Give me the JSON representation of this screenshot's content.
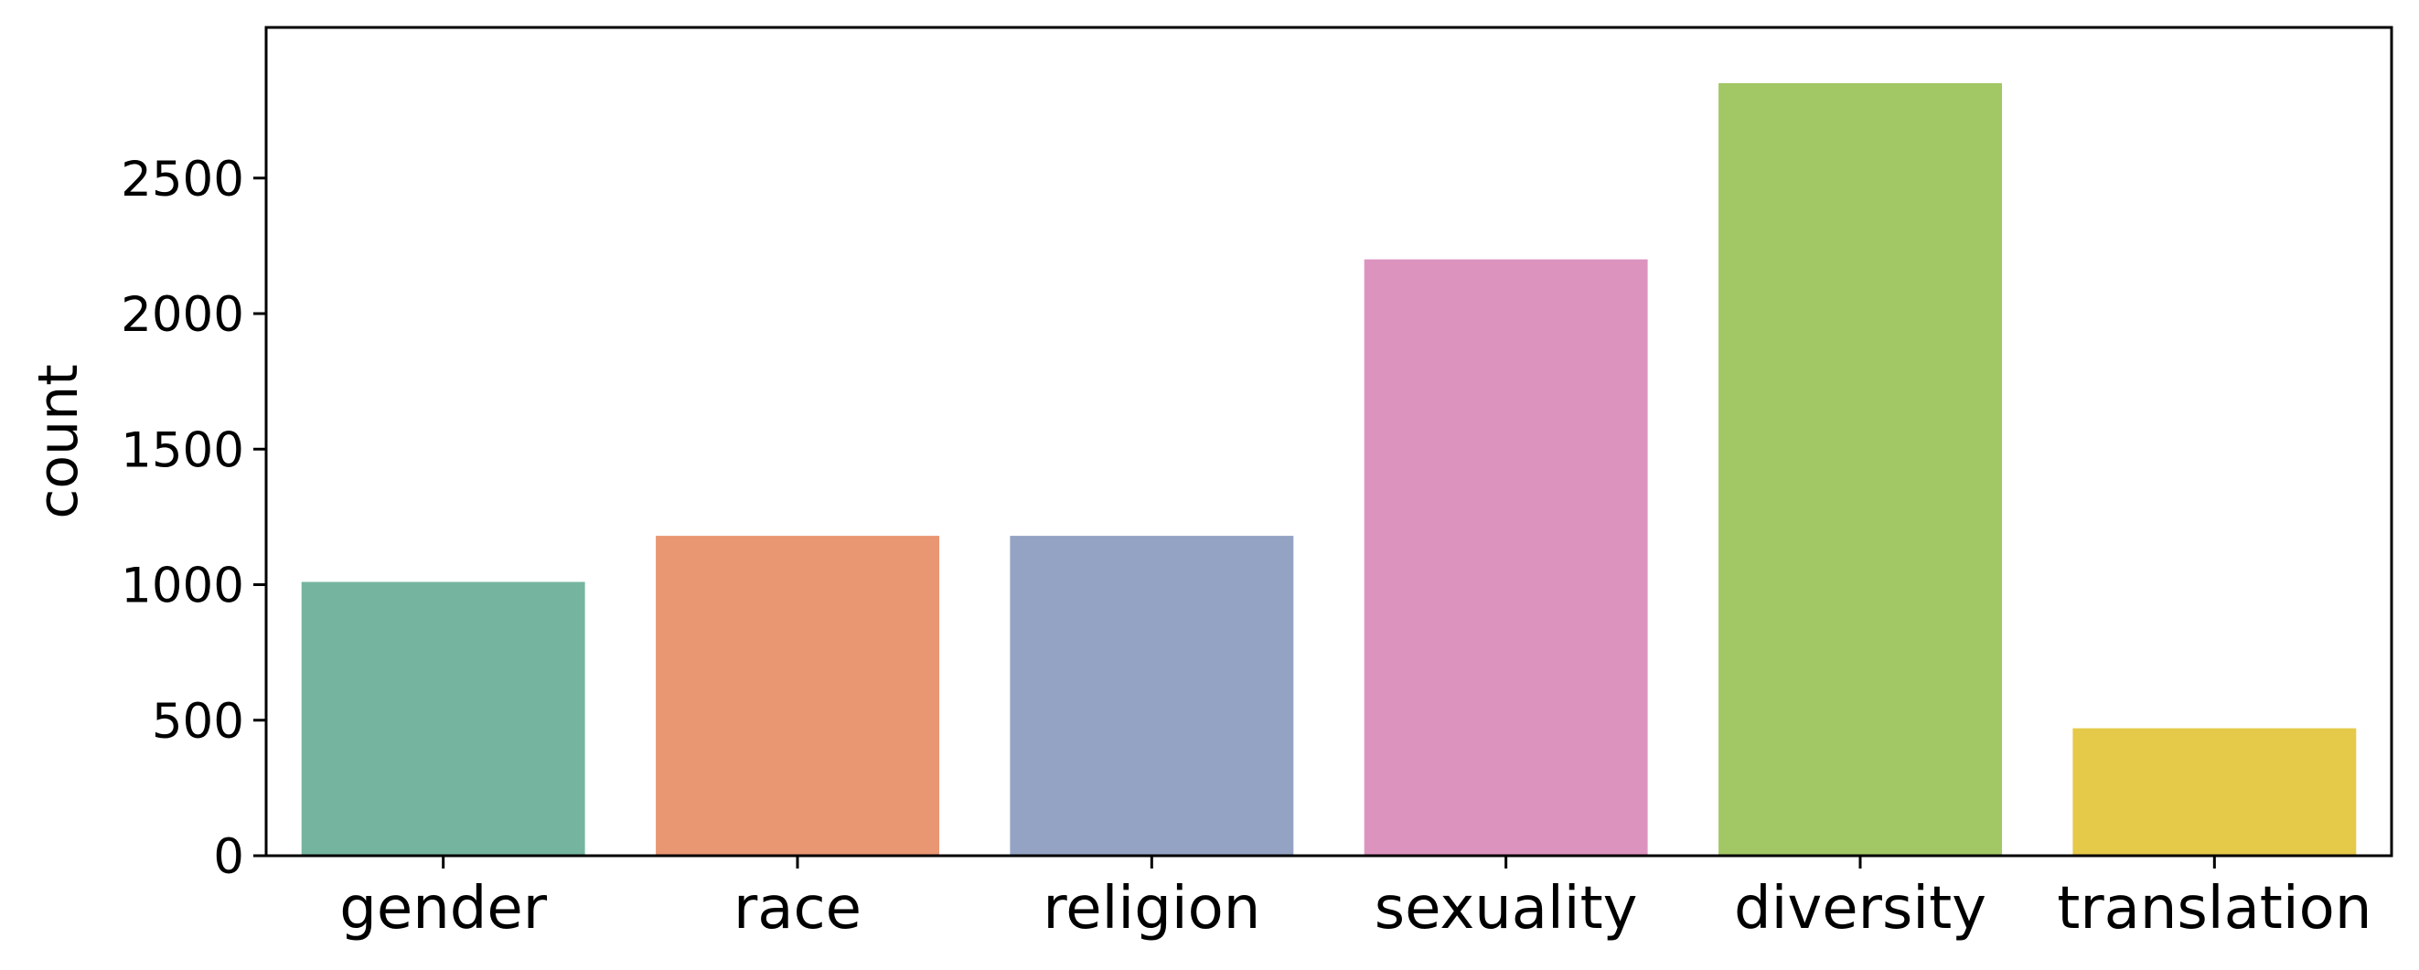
{
  "chart_data": {
    "type": "bar",
    "title": "",
    "xlabel": "",
    "ylabel": "count",
    "categories": [
      "gender",
      "race",
      "religion",
      "sexuality",
      "diversity",
      "translation"
    ],
    "values": [
      1010,
      1180,
      1180,
      2200,
      2850,
      470
    ],
    "colors": [
      "#75b5a0",
      "#e99673",
      "#94a3c3",
      "#dc94bf",
      "#a2c765",
      "#e5c949"
    ],
    "ylim": [
      0,
      3000
    ],
    "yticks": [
      0,
      500,
      1000,
      1500,
      2000,
      2500
    ],
    "ytick_labels": [
      "0",
      "500",
      "1000",
      "1500",
      "2000",
      "2500"
    ],
    "grid": false,
    "legend": "none"
  }
}
